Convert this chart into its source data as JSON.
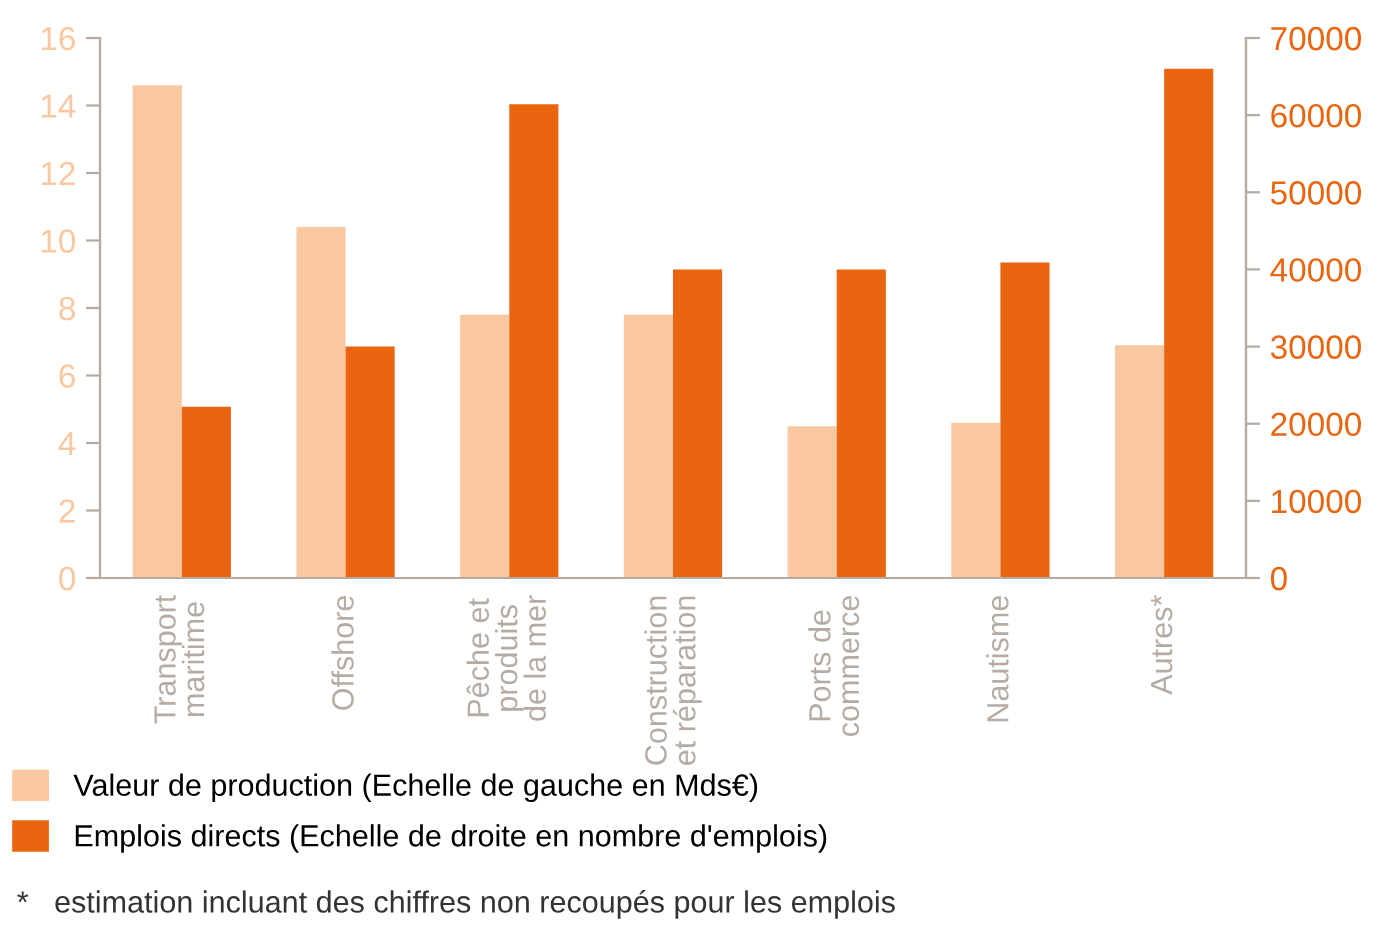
{
  "chart_data": {
    "type": "bar",
    "categories": [
      "Transport\nmaritime",
      "Offshore",
      "Pêche et\nproduits\nde la mer",
      "Construction\net réparation",
      "Ports de\ncommerce",
      "Nautisme",
      "Autres*"
    ],
    "series": [
      {
        "name": "Valeur de production (Echelle de gauche en Mds€)",
        "color": "#f9c7a0",
        "values": [
          14.6,
          10.4,
          7.8,
          7.8,
          4.5,
          4.6,
          6.9
        ]
      },
      {
        "name": "Emplois directs (Echelle de droite en nombre d'emplois)",
        "color": "#ea6510",
        "axis": "y2",
        "values": [
          22200,
          30000,
          61400,
          40000,
          40000,
          40900,
          66000
        ]
      }
    ],
    "ylim": [
      0,
      16
    ],
    "yticks": [
      0,
      2,
      4,
      6,
      8,
      10,
      12,
      14,
      16
    ],
    "y2lim": [
      0,
      70000
    ],
    "y2ticks": [
      0,
      10000,
      20000,
      30000,
      40000,
      50000,
      60000,
      70000
    ],
    "grid": false,
    "legend": "bottom",
    "annotations": [
      "*   estimation incluant des chiffres non recoupés pour les emplois"
    ]
  }
}
